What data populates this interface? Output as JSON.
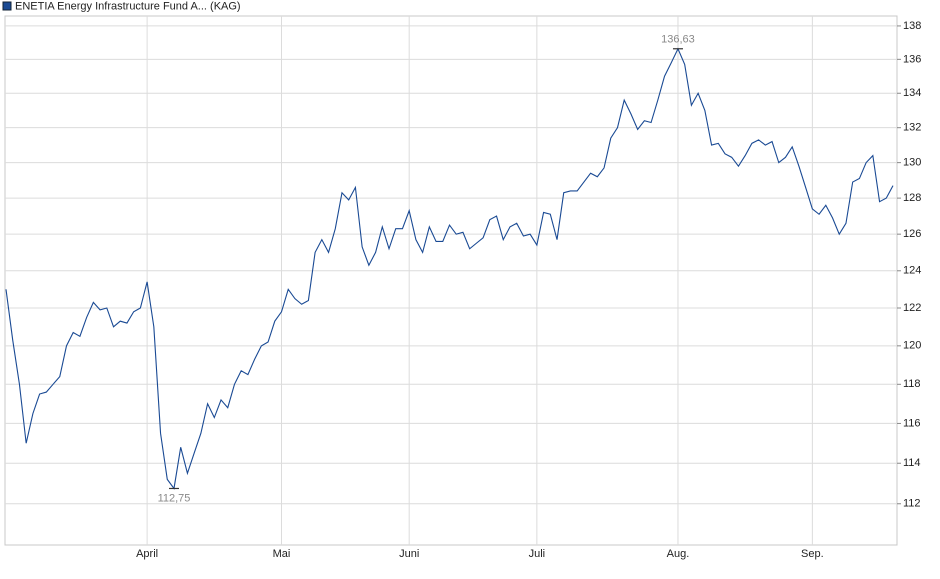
{
  "chart_data": {
    "type": "line",
    "series": [
      {
        "name": "ENETIA Energy Infrastructure Fund A... (KAG)",
        "color": "#1a4a94",
        "values": [
          123,
          120.3,
          118,
          115,
          116.5,
          117.5,
          117.6,
          118,
          118.4,
          120,
          120.7,
          120.5,
          121.5,
          122.3,
          121.9,
          122,
          121,
          121.3,
          121.2,
          121.8,
          122,
          123.4,
          121,
          115.5,
          113.2,
          112.75,
          114.8,
          113.5,
          114.5,
          115.5,
          117,
          116.3,
          117.2,
          116.8,
          118,
          118.7,
          118.5,
          119.3,
          120,
          120.2,
          121.3,
          121.8,
          123,
          122.5,
          122.2,
          122.4,
          125,
          125.7,
          125,
          126.3,
          128.3,
          127.9,
          128.6,
          125.3,
          124.3,
          125,
          126.4,
          125.2,
          126.3,
          126.3,
          127.3,
          125.7,
          125,
          126.4,
          125.6,
          125.6,
          126.5,
          126,
          126.1,
          125.2,
          125.5,
          125.8,
          126.8,
          127,
          125.7,
          126.4,
          126.6,
          125.9,
          126,
          125.4,
          127.2,
          127.1,
          125.7,
          128.3,
          128.4,
          128.4,
          128.9,
          129.4,
          129.2,
          129.7,
          131.4,
          132,
          133.6,
          132.8,
          131.9,
          132.4,
          132.3,
          133.6,
          135,
          135.8,
          136.63,
          135.7,
          133.3,
          134,
          133,
          131,
          131.1,
          130.5,
          130.3,
          129.8,
          130.4,
          131.1,
          131.3,
          131,
          131.2,
          130,
          130.3,
          130.9,
          129.8,
          128.6,
          127.4,
          127.1,
          127.6,
          126.9,
          126,
          126.6,
          128.9,
          129.1,
          130,
          130.4,
          127.8,
          128,
          128.7
        ]
      }
    ],
    "categories": [
      null,
      null,
      null,
      null,
      null,
      null,
      null,
      null,
      null,
      null,
      null,
      null,
      null,
      null,
      null,
      null,
      null,
      null,
      null,
      null,
      null,
      "April",
      null,
      null,
      null,
      null,
      null,
      null,
      null,
      null,
      null,
      null,
      null,
      null,
      null,
      null,
      null,
      null,
      null,
      null,
      null,
      "Mai",
      null,
      null,
      null,
      null,
      null,
      null,
      null,
      null,
      null,
      null,
      null,
      null,
      null,
      null,
      null,
      null,
      null,
      null,
      "Juni",
      null,
      null,
      null,
      null,
      null,
      null,
      null,
      null,
      null,
      null,
      null,
      null,
      null,
      null,
      null,
      null,
      null,
      null,
      "Juli",
      null,
      null,
      null,
      null,
      null,
      null,
      null,
      null,
      null,
      null,
      null,
      null,
      null,
      null,
      null,
      null,
      null,
      null,
      null,
      null,
      "Aug.",
      null,
      null,
      null,
      null,
      null,
      null,
      null,
      null,
      null,
      null,
      null,
      null,
      null,
      null,
      null,
      null,
      null,
      null,
      null,
      "Sep.",
      null,
      null,
      null,
      null,
      null,
      null,
      null,
      null,
      null,
      null,
      null,
      null
    ],
    "annotations": [
      {
        "value": 136.63,
        "label": "136,63"
      },
      {
        "value": 112.75,
        "label": "112,75"
      }
    ],
    "ylim": [
      110,
      138.6
    ],
    "yticks": [
      112,
      114,
      116,
      118,
      120,
      122,
      124,
      126,
      128,
      130,
      132,
      134,
      136,
      138
    ],
    "log_scale": true,
    "grid": true
  }
}
